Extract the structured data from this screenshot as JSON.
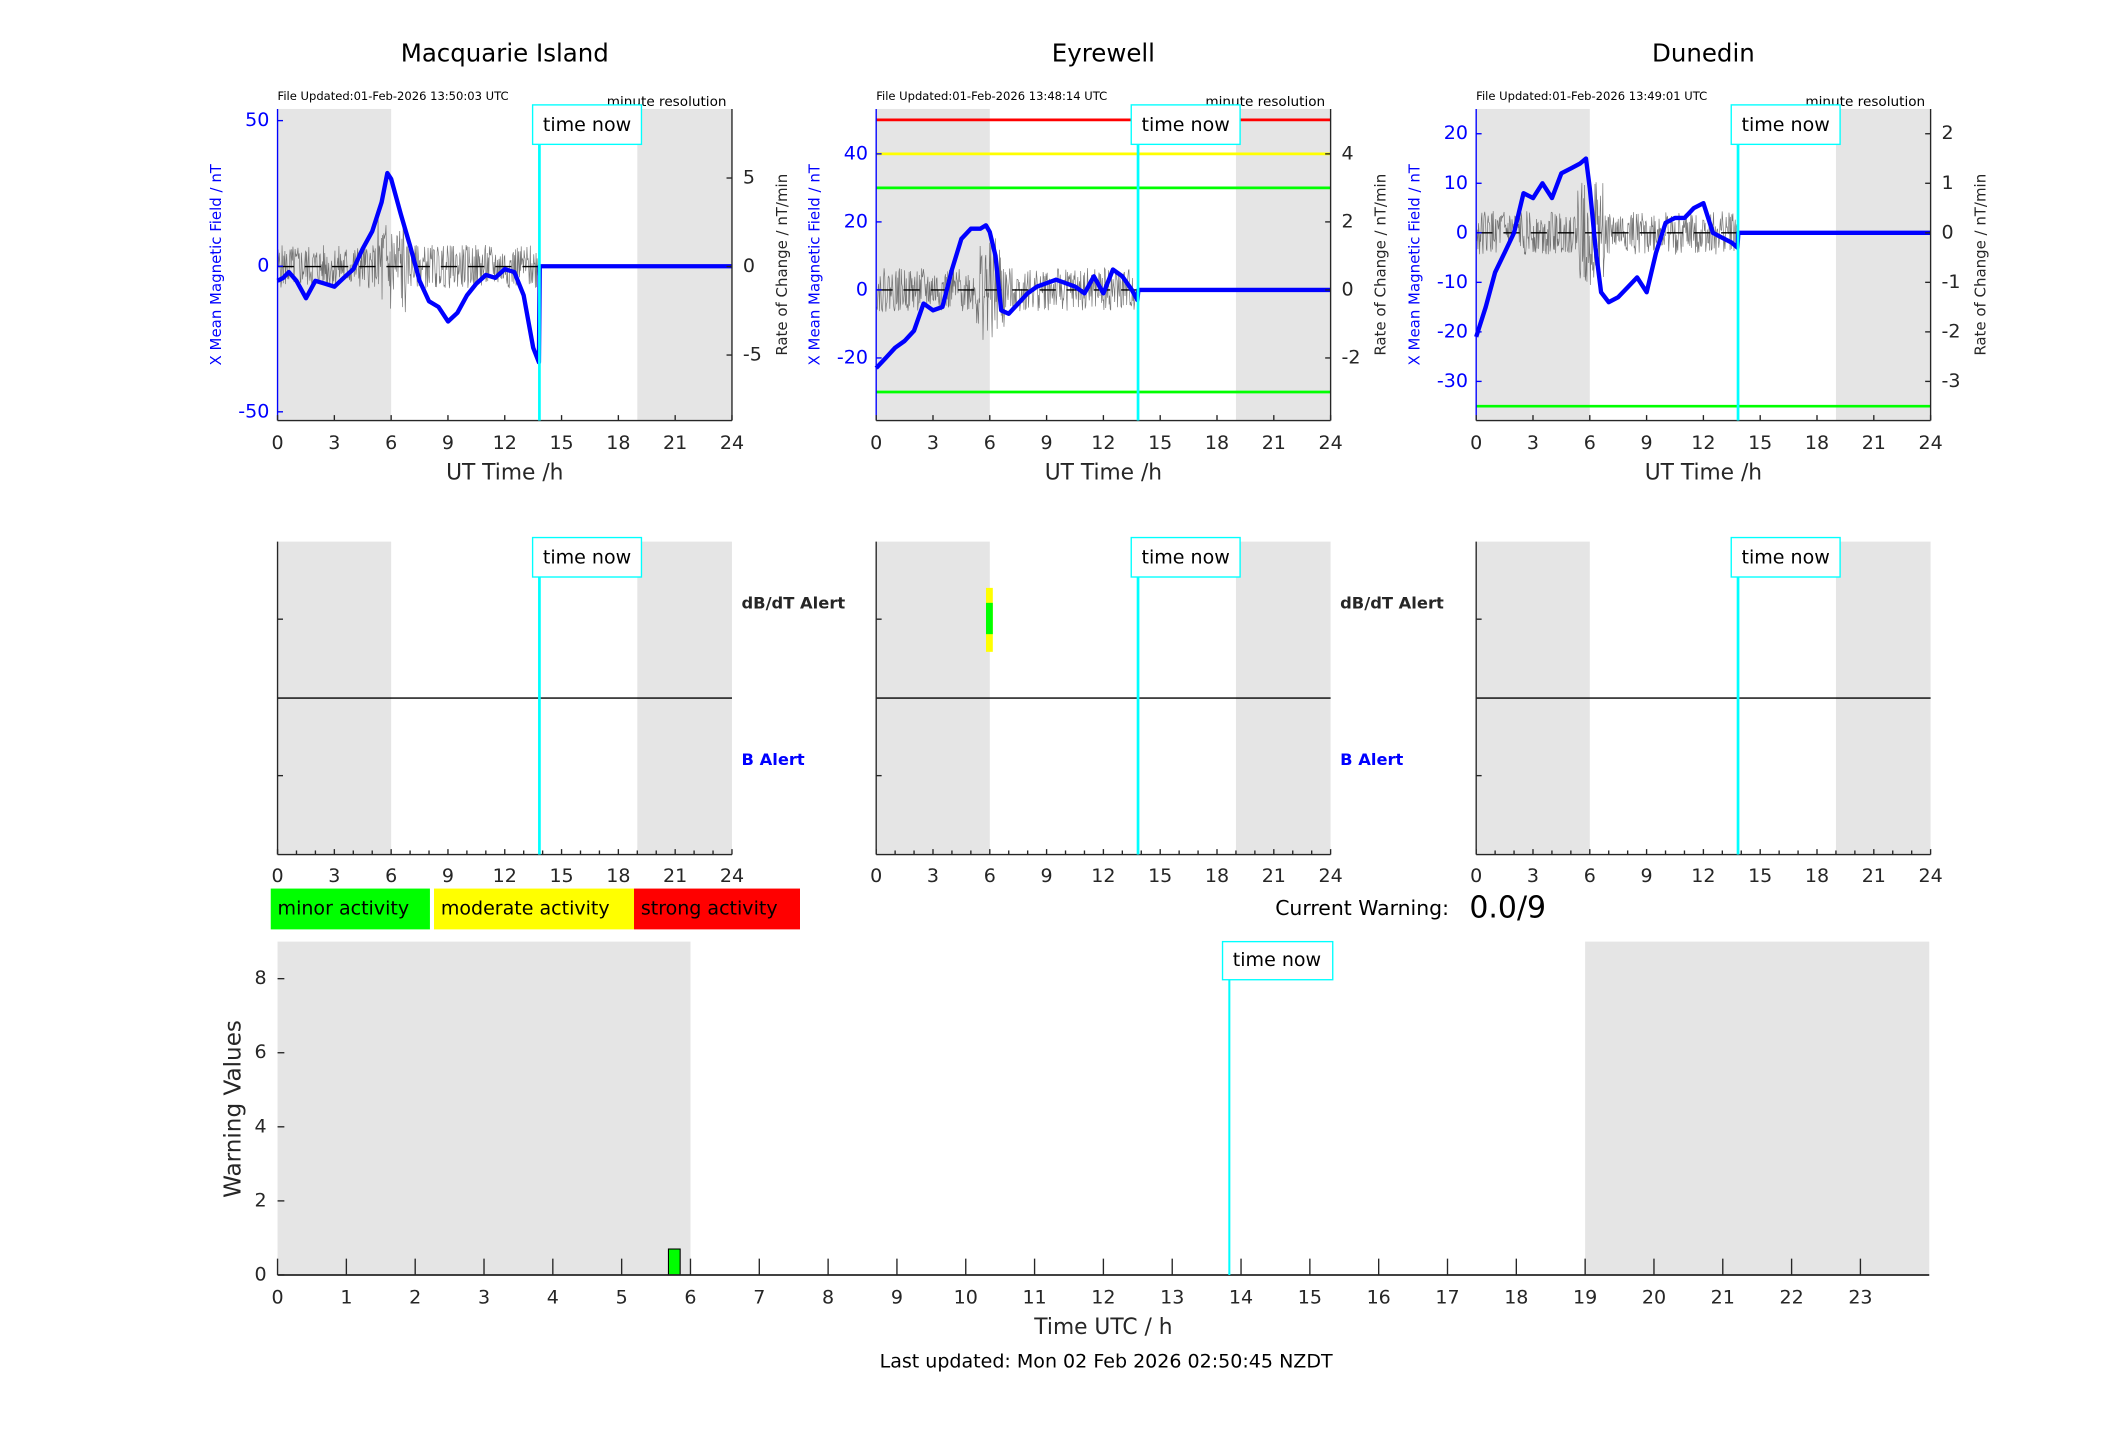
{
  "chart_data": [
    {
      "type": "line",
      "title": "Macquarie Island",
      "file_updated": "File Updated:01-Feb-2026 13:50:03 UTC",
      "resolution": "minute resolution",
      "xlabel": "UT Time /h",
      "xlim": [
        0,
        24
      ],
      "xticks": [
        0,
        3,
        6,
        9,
        12,
        15,
        18,
        21,
        24
      ],
      "night_shading": [
        [
          0,
          6
        ],
        [
          19,
          24
        ]
      ],
      "time_now": 13.83,
      "time_now_label": "time now",
      "left_axis": {
        "label": "X Mean Magnetic Field / nT",
        "ylim": [
          -53,
          54
        ],
        "ticks": [
          -50,
          0,
          50
        ],
        "color": "#0000ff"
      },
      "right_axis": {
        "label": "Rate of Change / nT/min",
        "ylim": [
          -8.7,
          8.9
        ],
        "ticks": [
          -5,
          0,
          5
        ]
      },
      "threshold_lines": [],
      "series": {
        "x": [
          0,
          0.3,
          0.6,
          1,
          1.5,
          2,
          2.5,
          3,
          3.5,
          4,
          4.5,
          5,
          5.5,
          5.8,
          6,
          6.5,
          7,
          7.5,
          8,
          8.5,
          9,
          9.5,
          10,
          10.5,
          11,
          11.5,
          12,
          12.5,
          13,
          13.5,
          13.8,
          13.85,
          24
        ],
        "y": [
          -5,
          -4,
          -2,
          -5,
          -11,
          -5,
          -6,
          -7,
          -4,
          -1,
          6,
          12,
          22,
          32,
          30,
          18,
          7,
          -5,
          -12,
          -14,
          -19,
          -16,
          -10,
          -6,
          -3,
          -4,
          -1,
          -2,
          -10,
          -28,
          -33,
          0,
          0
        ]
      },
      "alert_panel": {
        "upper_label": "dB/dT Alert",
        "lower_label": "B Alert",
        "alerts": []
      }
    },
    {
      "type": "line",
      "title": "Eyrewell",
      "file_updated": "File Updated:01-Feb-2026 13:48:14 UTC",
      "resolution": "minute resolution",
      "xlabel": "UT Time /h",
      "xlim": [
        0,
        24
      ],
      "xticks": [
        0,
        3,
        6,
        9,
        12,
        15,
        18,
        21,
        24
      ],
      "night_shading": [
        [
          0,
          6
        ],
        [
          19,
          24
        ]
      ],
      "time_now": 13.83,
      "time_now_label": "time now",
      "left_axis": {
        "label": "X Mean Magnetic Field / nT",
        "ylim": [
          -38.4,
          53.2
        ],
        "ticks": [
          -20,
          0,
          20,
          40
        ],
        "color": "#0000ff"
      },
      "right_axis": {
        "label": "Rate of Change / nT/min",
        "ylim": [
          -3.84,
          5.32
        ],
        "ticks": [
          -2,
          0,
          2,
          4
        ]
      },
      "threshold_lines": [
        {
          "value": 50,
          "color": "#ff0000"
        },
        {
          "value": 40,
          "color": "#ffff00"
        },
        {
          "value": 30,
          "color": "#00ff00"
        },
        {
          "value": -30,
          "color": "#00ff00"
        }
      ],
      "series": {
        "x": [
          0,
          0.5,
          1,
          1.5,
          2,
          2.5,
          3,
          3.5,
          4,
          4.5,
          5,
          5.5,
          5.8,
          6,
          6.3,
          6.6,
          7,
          7.5,
          8,
          8.5,
          9,
          9.5,
          10,
          10.5,
          11,
          11.5,
          12,
          12.5,
          13,
          13.5,
          13.8,
          13.85,
          24
        ],
        "y": [
          -23,
          -20,
          -17,
          -15,
          -12,
          -4,
          -6,
          -5,
          6,
          15,
          18,
          18,
          19,
          17,
          10,
          -6,
          -7,
          -4,
          -1,
          1,
          2,
          3,
          2,
          1,
          -1,
          4,
          -1,
          6,
          4,
          0,
          -3,
          0,
          0
        ]
      },
      "alert_panel": {
        "upper_label": "dB/dT Alert",
        "lower_label": "B Alert",
        "alerts": [
          {
            "start": 5.8,
            "end": 6.0,
            "level": "moderate",
            "color": "#ffff00"
          },
          {
            "start": 5.8,
            "end": 6.0,
            "level": "minor",
            "color": "#00ff00"
          }
        ]
      }
    },
    {
      "type": "line",
      "title": "Dunedin",
      "file_updated": "File Updated:01-Feb-2026 13:49:01 UTC",
      "resolution": "minute resolution",
      "xlabel": "UT Time /h",
      "xlim": [
        0,
        24
      ],
      "xticks": [
        0,
        3,
        6,
        9,
        12,
        15,
        18,
        21,
        24
      ],
      "night_shading": [
        [
          0,
          6
        ],
        [
          19,
          24
        ]
      ],
      "time_now": 13.83,
      "time_now_label": "time now",
      "left_axis": {
        "label": "X Mean Magnetic Field / nT",
        "ylim": [
          -37.9,
          25
        ],
        "ticks": [
          -30,
          -20,
          -10,
          0,
          10,
          20
        ],
        "color": "#0000ff"
      },
      "right_axis": {
        "label": "Rate of Change / nT/min",
        "ylim": [
          -3.79,
          2.5
        ],
        "ticks": [
          -3,
          -2,
          -1,
          0,
          1,
          2
        ]
      },
      "threshold_lines": [
        {
          "value": -35,
          "color": "#00ff00"
        }
      ],
      "series": {
        "x": [
          0,
          0.5,
          1,
          1.5,
          2,
          2.5,
          3,
          3.5,
          4,
          4.5,
          5,
          5.5,
          5.8,
          6,
          6.3,
          6.6,
          7,
          7.5,
          8,
          8.5,
          9,
          9.5,
          10,
          10.5,
          11,
          11.5,
          12,
          12.5,
          13,
          13.5,
          13.8,
          13.85,
          24
        ],
        "y": [
          -21,
          -15,
          -8,
          -4,
          0,
          8,
          7,
          10,
          7,
          12,
          13,
          14,
          15,
          9,
          -3,
          -12,
          -14,
          -13,
          -11,
          -9,
          -12,
          -4,
          2,
          3,
          3,
          5,
          6,
          0,
          -1,
          -2,
          -3,
          0,
          0
        ]
      },
      "alert_panel": {
        "upper_label": "dB/dT Alert",
        "lower_label": "B Alert",
        "alerts": []
      }
    },
    {
      "type": "bar",
      "ylabel": "Warning Values",
      "xlabel": "Time UTC / h",
      "xlim": [
        0,
        24
      ],
      "ylim": [
        0,
        9
      ],
      "xticks": [
        0,
        1,
        2,
        3,
        4,
        5,
        6,
        7,
        8,
        9,
        10,
        11,
        12,
        13,
        14,
        15,
        16,
        17,
        18,
        19,
        20,
        21,
        22,
        23
      ],
      "yticks": [
        0,
        2,
        4,
        6,
        8
      ],
      "night_shading": [
        [
          0,
          6
        ],
        [
          19,
          24
        ]
      ],
      "time_now": 13.83,
      "time_now_label": "time now",
      "bars": [
        {
          "start": 5.68,
          "end": 5.85,
          "value": 0.7,
          "color": "#00ff00"
        }
      ]
    }
  ],
  "legend": [
    {
      "label": "minor activity",
      "color": "#00ff00"
    },
    {
      "label": "moderate activity",
      "color": "#ffff00"
    },
    {
      "label": "strong activity",
      "color": "#ff0000"
    }
  ],
  "current_warning": {
    "label": "Current Warning:",
    "value": "0.0/9"
  },
  "last_updated": "Last updated: Mon 02 Feb 2026 02:50:45 NZDT"
}
